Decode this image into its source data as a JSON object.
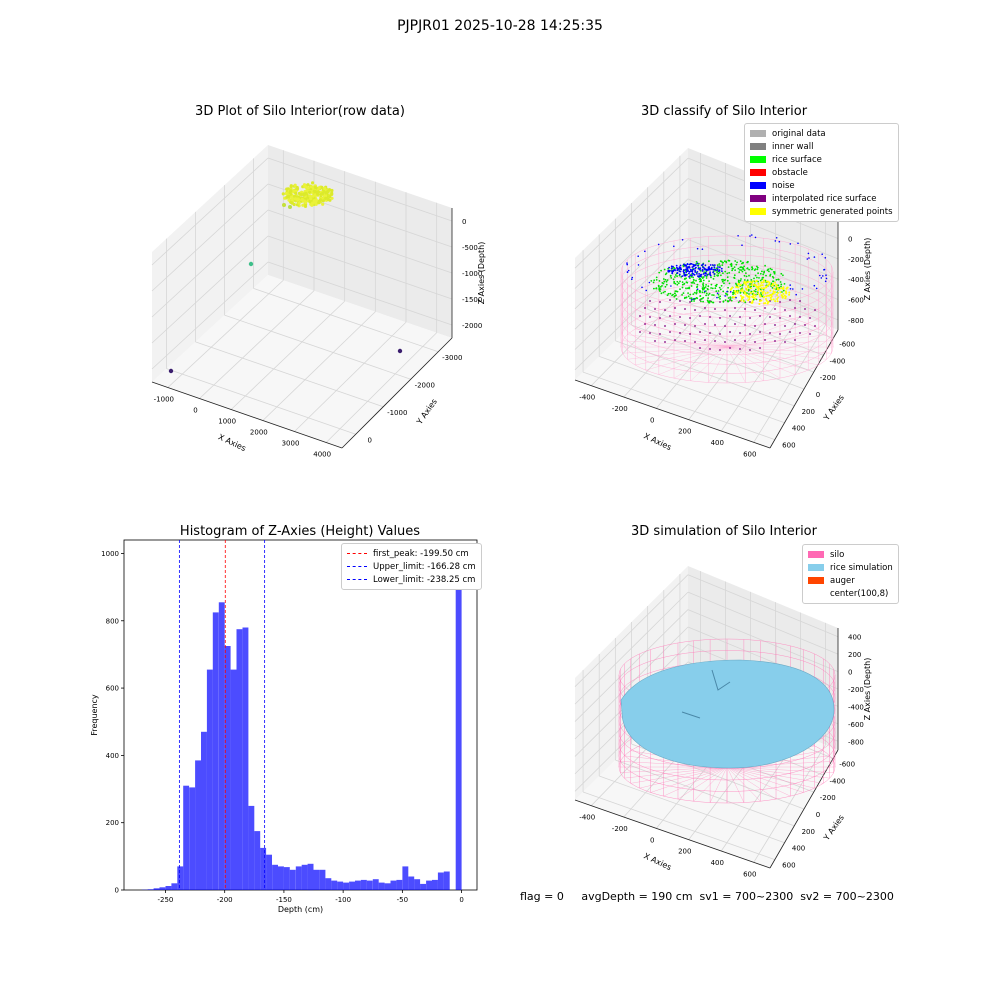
{
  "suptitle": "PJPJR01 2025-10-28 14:25:35",
  "panels": {
    "raw": {
      "title": "3D Plot of Silo Interior(row data)",
      "xlabel": "X Axies",
      "ylabel": "Y Axies",
      "zlabel": "Z Axies (Depth)",
      "xticks": [
        "-1000",
        "0",
        "1000",
        "2000",
        "3000",
        "4000"
      ],
      "yticks": [
        "0",
        "-1000",
        "-2000",
        "-3000"
      ],
      "zticks": [
        "0",
        "-500",
        "-1000",
        "-1500",
        "-2000"
      ]
    },
    "classify": {
      "title": "3D classify of Silo Interior",
      "xlabel": "X Axies",
      "ylabel": "Y Axies",
      "zlabel": "Z Axies (Depth)",
      "xticks": [
        "-400",
        "-200",
        "0",
        "200",
        "400",
        "600"
      ],
      "yticks": [
        "600",
        "400",
        "200",
        "0",
        "-200",
        "-400",
        "-600"
      ],
      "zticks": [
        "200",
        "0",
        "-200",
        "-400",
        "-600",
        "-800"
      ],
      "legend": [
        {
          "label": "original data",
          "color": "#b0b0b0"
        },
        {
          "label": "inner wall",
          "color": "#808080"
        },
        {
          "label": "rice surface",
          "color": "#00ff00"
        },
        {
          "label": "obstacle",
          "color": "#ff0000"
        },
        {
          "label": "noise",
          "color": "#0000ff"
        },
        {
          "label": "interpolated rice surface",
          "color": "#800080"
        },
        {
          "label": "symmetric generated points",
          "color": "#ffff00"
        }
      ]
    },
    "simulation": {
      "title": "3D simulation of Silo Interior",
      "xlabel": "X Axies",
      "ylabel": "Y Axies",
      "zlabel": "Z Axies (Depth)",
      "xticks": [
        "-400",
        "-200",
        "0",
        "200",
        "400",
        "600"
      ],
      "yticks": [
        "600",
        "400",
        "200",
        "0",
        "-200",
        "-400",
        "-600"
      ],
      "zticks": [
        "400",
        "200",
        "0",
        "-200",
        "-400",
        "-600",
        "-800"
      ],
      "legend": [
        {
          "label": "silo",
          "color": "#ff69b4"
        },
        {
          "label": "rice simulation",
          "color": "#87ceeb"
        },
        {
          "label": "auger",
          "color": "#ff4500"
        },
        {
          "label": "center(100,8)",
          "color": ""
        }
      ]
    }
  },
  "footer": "flag = 0     avgDepth = 190 cm  sv1 = 700~2300  sv2 = 700~2300",
  "chart_data": {
    "type": "bar",
    "title": "Histogram of Z-Axies (Height) Values",
    "xlabel": "Depth (cm)",
    "ylabel": "Frequency",
    "xlim": [
      -285,
      13
    ],
    "ylim": [
      0,
      1040
    ],
    "xticks": [
      -250,
      -200,
      -150,
      -100,
      -50,
      0
    ],
    "yticks": [
      0,
      200,
      400,
      600,
      800,
      1000
    ],
    "bar_color": "#0000ff",
    "bin_width": 5,
    "bins": [
      [
        -270,
        1
      ],
      [
        -265,
        2
      ],
      [
        -260,
        5
      ],
      [
        -255,
        8
      ],
      [
        -250,
        12
      ],
      [
        -245,
        20
      ],
      [
        -240,
        70
      ],
      [
        -235,
        310
      ],
      [
        -230,
        305
      ],
      [
        -225,
        385
      ],
      [
        -220,
        470
      ],
      [
        -215,
        655
      ],
      [
        -210,
        825
      ],
      [
        -205,
        855
      ],
      [
        -200,
        725
      ],
      [
        -195,
        655
      ],
      [
        -190,
        775
      ],
      [
        -185,
        780
      ],
      [
        -180,
        250
      ],
      [
        -175,
        175
      ],
      [
        -170,
        125
      ],
      [
        -165,
        105
      ],
      [
        -160,
        75
      ],
      [
        -155,
        70
      ],
      [
        -150,
        68
      ],
      [
        -145,
        60
      ],
      [
        -140,
        70
      ],
      [
        -135,
        75
      ],
      [
        -130,
        78
      ],
      [
        -125,
        60
      ],
      [
        -120,
        60
      ],
      [
        -115,
        35
      ],
      [
        -110,
        28
      ],
      [
        -105,
        25
      ],
      [
        -100,
        22
      ],
      [
        -95,
        25
      ],
      [
        -90,
        28
      ],
      [
        -85,
        30
      ],
      [
        -80,
        28
      ],
      [
        -75,
        32
      ],
      [
        -70,
        22
      ],
      [
        -65,
        20
      ],
      [
        -60,
        28
      ],
      [
        -55,
        30
      ],
      [
        -50,
        70
      ],
      [
        -45,
        40
      ],
      [
        -40,
        32
      ],
      [
        -35,
        18
      ],
      [
        -30,
        28
      ],
      [
        -25,
        30
      ],
      [
        -20,
        52
      ],
      [
        -15,
        55
      ],
      [
        -10,
        0
      ],
      [
        -5,
        1000
      ]
    ],
    "vlines": [
      {
        "x": -199.5,
        "color": "#ff0000",
        "label": "first_peak: -199.50 cm"
      },
      {
        "x": -166.28,
        "color": "#0000ff",
        "label": "Upper_limit: -166.28 cm"
      },
      {
        "x": -238.25,
        "color": "#0000ff",
        "label": "Lower_limit: -238.25 cm"
      }
    ]
  }
}
